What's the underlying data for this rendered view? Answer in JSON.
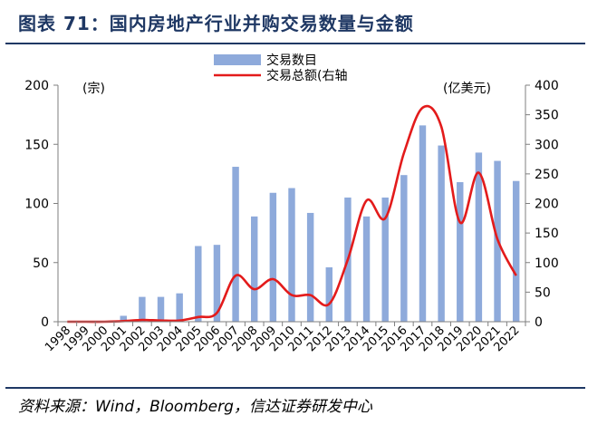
{
  "figure": {
    "title": "图表 71：国内房地产行业并购交易数量与金额",
    "source": "资料来源：Wind，Bloomberg，信达证券研发中心"
  },
  "chart_data": {
    "type": "bar+line",
    "categories": [
      "1998",
      "1999",
      "2000",
      "2001",
      "2002",
      "2003",
      "2004",
      "2005",
      "2006",
      "2007",
      "2008",
      "2009",
      "2010",
      "2011",
      "2012",
      "2013",
      "2014",
      "2015",
      "2016",
      "2017",
      "2018",
      "2019",
      "2020",
      "2021",
      "2022"
    ],
    "series": [
      {
        "name": "交易数目",
        "type": "bar",
        "axis": "left",
        "color": "#8eaadb",
        "values": [
          0,
          0,
          0,
          5,
          21,
          21,
          24,
          64,
          65,
          131,
          89,
          109,
          113,
          92,
          46,
          105,
          89,
          105,
          124,
          166,
          149,
          118,
          143,
          136,
          119
        ]
      },
      {
        "name": "交易总额(右轴",
        "type": "line",
        "axis": "right",
        "color": "#e31b1b",
        "values": [
          0,
          0,
          0,
          1,
          3,
          2,
          2,
          8,
          15,
          78,
          55,
          72,
          45,
          45,
          30,
          105,
          205,
          175,
          285,
          362,
          330,
          168,
          252,
          140,
          78
        ]
      }
    ],
    "left_axis": {
      "label": "(宗)",
      "range": [
        0,
        200
      ],
      "ticks": [
        0,
        50,
        100,
        150,
        200
      ]
    },
    "right_axis": {
      "label": "(亿美元)",
      "range": [
        0,
        400
      ],
      "ticks": [
        0,
        50,
        100,
        150,
        200,
        250,
        300,
        350,
        400
      ]
    },
    "legend_position": "top-center",
    "grid": false
  }
}
